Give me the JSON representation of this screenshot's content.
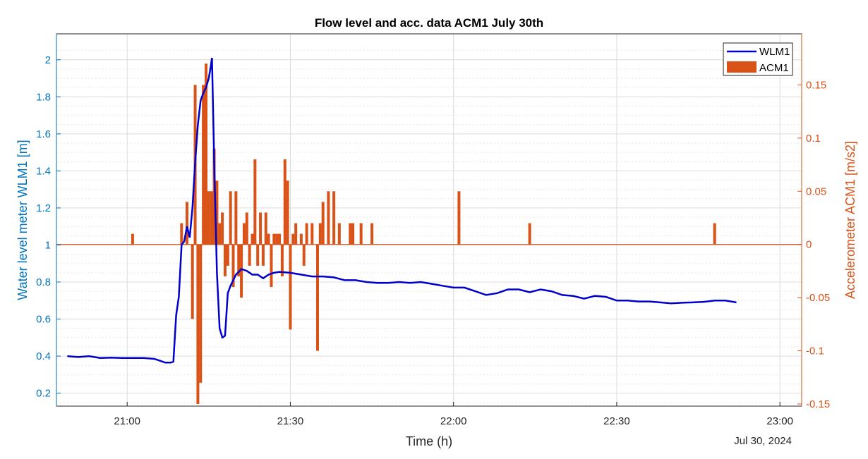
{
  "chart_data": {
    "type": "line",
    "title": "Flow level and acc. data ACM1 July 30th",
    "xlabel": "Time (h)",
    "date_label": "Jul 30, 2024",
    "xlim": [
      "20:47",
      "23:04"
    ],
    "xticks": [
      "21:00",
      "21:30",
      "22:00",
      "22:30",
      "23:00"
    ],
    "y_left": {
      "label": "Water level meter WLM1 [m]",
      "lim": [
        0.13,
        2.14
      ],
      "ticks": [
        "0.2",
        "0.4",
        "0.6",
        "0.8",
        "1",
        "1.2",
        "1.4",
        "1.6",
        "1.8",
        "2"
      ],
      "color": "#0072BD"
    },
    "y_right": {
      "label": "Accelerometer ACM1 [m/s2]",
      "lim": [
        -0.152,
        0.198
      ],
      "ticks": [
        "-0.15",
        "-0.1",
        "-0.05",
        "0",
        "0.05",
        "0.1",
        "0.15"
      ],
      "color": "#D95319"
    },
    "grid": true,
    "minor_grid": true,
    "legend_position": "top-right",
    "series": [
      {
        "name": "WLM1",
        "kind": "line",
        "axis": "left",
        "color": "#0000CD",
        "x": [
          "20:49",
          "20:51",
          "20:53",
          "20:55",
          "20:57",
          "20:59",
          "21:01",
          "21:03",
          "21:05",
          "21:06",
          "21:07",
          "21:08",
          "21:08.5",
          "21:09",
          "21:09.5",
          "21:10",
          "21:10.5",
          "21:11",
          "21:11.5",
          "21:12",
          "21:12.5",
          "21:13",
          "21:13.5",
          "21:14",
          "21:14.5",
          "21:15",
          "21:15.3",
          "21:15.6",
          "21:16",
          "21:16.5",
          "21:17",
          "21:17.5",
          "21:18",
          "21:18.5",
          "21:19",
          "21:20",
          "21:21",
          "21:22",
          "21:23",
          "21:24",
          "21:25",
          "21:26",
          "21:27",
          "21:28",
          "21:30",
          "21:32",
          "21:34",
          "21:36",
          "21:38",
          "21:40",
          "21:42",
          "21:44",
          "21:46",
          "21:48",
          "21:50",
          "21:52",
          "21:54",
          "21:56",
          "21:58",
          "22:00",
          "22:02",
          "22:04",
          "22:06",
          "22:08",
          "22:10",
          "22:12",
          "22:14",
          "22:16",
          "22:18",
          "22:20",
          "22:22",
          "22:24",
          "22:26",
          "22:28",
          "22:30",
          "22:32",
          "22:34",
          "22:36",
          "22:38",
          "22:40",
          "22:42",
          "22:44",
          "22:46",
          "22:48",
          "22:50",
          "22:52"
        ],
        "y": [
          0.4,
          0.395,
          0.4,
          0.39,
          0.392,
          0.39,
          0.39,
          0.39,
          0.385,
          0.375,
          0.365,
          0.365,
          0.37,
          0.62,
          0.72,
          1.0,
          1.02,
          1.1,
          1.04,
          1.2,
          1.45,
          1.65,
          1.78,
          1.82,
          1.85,
          1.9,
          1.95,
          2.01,
          1.45,
          0.85,
          0.55,
          0.5,
          0.51,
          0.74,
          0.78,
          0.84,
          0.87,
          0.86,
          0.84,
          0.84,
          0.82,
          0.84,
          0.85,
          0.855,
          0.85,
          0.84,
          0.83,
          0.83,
          0.825,
          0.81,
          0.81,
          0.8,
          0.795,
          0.795,
          0.8,
          0.795,
          0.8,
          0.79,
          0.78,
          0.77,
          0.77,
          0.75,
          0.73,
          0.74,
          0.76,
          0.76,
          0.745,
          0.76,
          0.75,
          0.73,
          0.725,
          0.71,
          0.725,
          0.72,
          0.7,
          0.7,
          0.695,
          0.695,
          0.69,
          0.685,
          0.688,
          0.69,
          0.693,
          0.7,
          0.7,
          0.69
        ]
      },
      {
        "name": "ACM1",
        "kind": "bar",
        "axis": "right",
        "color": "#D95319",
        "x": [
          "21:01",
          "21:10",
          "21:11",
          "21:12",
          "21:12.5",
          "21:13",
          "21:13.5",
          "21:14",
          "21:14.5",
          "21:15",
          "21:15.5",
          "21:16",
          "21:16.5",
          "21:17",
          "21:17.5",
          "21:18",
          "21:18.5",
          "21:19",
          "21:19.5",
          "21:20",
          "21:20.5",
          "21:21",
          "21:21.5",
          "21:22",
          "21:22.5",
          "21:23",
          "21:23.5",
          "21:24",
          "21:24.5",
          "21:25",
          "21:25.5",
          "21:26",
          "21:26.5",
          "21:27",
          "21:27.5",
          "21:28",
          "21:28.5",
          "21:29",
          "21:29.5",
          "21:30",
          "21:30.5",
          "21:31",
          "21:32",
          "21:32.5",
          "21:33",
          "21:34",
          "21:35",
          "21:35.5",
          "21:36",
          "21:37",
          "21:38",
          "21:39",
          "21:41",
          "21:41.5",
          "21:43",
          "21:45",
          "22:01",
          "22:14",
          "22:48"
        ],
        "y": [
          0.01,
          0.02,
          0.04,
          -0.07,
          0.15,
          -0.15,
          -0.13,
          0.15,
          0.17,
          0.05,
          0.05,
          0.09,
          0.06,
          0.02,
          0.03,
          -0.03,
          -0.02,
          0.05,
          -0.04,
          0.05,
          -0.03,
          -0.05,
          0.02,
          0.03,
          -0.02,
          0.01,
          0.08,
          -0.02,
          0.03,
          -0.02,
          0.03,
          0.01,
          -0.04,
          0.01,
          0.01,
          0.01,
          -0.03,
          0.08,
          0.06,
          -0.08,
          0.01,
          0.02,
          0.01,
          -0.02,
          0.02,
          0.02,
          -0.1,
          0.02,
          0.04,
          0.05,
          0.05,
          0.02,
          0.02,
          0.02,
          0.02,
          0.02,
          0.05,
          0.02,
          0.02
        ]
      }
    ]
  }
}
